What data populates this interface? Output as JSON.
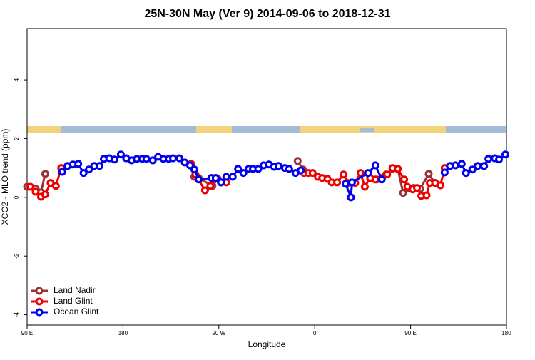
{
  "chart_data": {
    "type": "line",
    "title": "25N-30N May (Ver 9)   2014-09-06 to 2018-12-31",
    "xlabel": "Longitude",
    "ylabel": "XCO2 - MLO trend (ppm)",
    "xlim": [
      90,
      540
    ],
    "ylim": [
      -4.35,
      5.75
    ],
    "xticks": [
      {
        "value": 90,
        "label": "90 E"
      },
      {
        "value": 180,
        "label": "180"
      },
      {
        "value": 270,
        "label": "90 W"
      },
      {
        "value": 360,
        "label": "0"
      },
      {
        "value": 450,
        "label": "90 E"
      },
      {
        "value": 540,
        "label": "180"
      }
    ],
    "yticks": [
      -4,
      -2,
      0,
      2,
      4
    ],
    "legend": "bottom-left",
    "series": [
      {
        "name": "Land Nadir",
        "color": "#993333",
        "x": [
          90,
          98,
          103,
          107,
          200,
          247,
          251,
          264,
          269,
          300,
          344,
          349,
          400,
          418,
          427,
          433,
          438,
          443,
          448,
          453,
          459,
          467,
          473
        ],
        "values": [
          0.36,
          0.29,
          0.17,
          0.8,
          null,
          0.7,
          0.66,
          0.39,
          0.63,
          null,
          1.24,
          0.95,
          null,
          0.61,
          0.78,
          0.97,
          0.97,
          0.15,
          0.32,
          0.32,
          0.29,
          0.8,
          0.49
        ]
      },
      {
        "name": "Land Glint",
        "color": "#ee0000",
        "x": [
          93,
          98,
          103,
          107,
          112,
          117,
          122,
          200,
          244,
          248,
          257,
          262,
          267,
          272,
          277,
          300,
          350,
          354,
          358,
          363,
          367,
          372,
          376,
          381,
          387,
          391,
          398,
          403,
          407,
          412,
          417,
          423,
          428,
          433,
          438,
          444,
          447,
          452,
          456,
          460,
          465,
          468,
          473,
          478,
          482
        ],
        "values": [
          0.36,
          0.19,
          0.02,
          0.1,
          0.49,
          0.39,
          1.0,
          null,
          1.14,
          0.78,
          0.24,
          0.39,
          0.66,
          0.51,
          0.51,
          null,
          0.83,
          0.83,
          0.83,
          0.7,
          0.66,
          0.63,
          0.51,
          0.51,
          0.78,
          0.49,
          0.49,
          0.83,
          0.36,
          0.66,
          0.61,
          0.66,
          0.78,
          1.0,
          0.97,
          0.61,
          0.36,
          0.27,
          0.32,
          0.05,
          0.07,
          0.49,
          0.49,
          0.41,
          1.0
        ]
      },
      {
        "name": "Ocean Glint",
        "color": "#0000ee",
        "x": [
          123,
          128,
          133,
          138,
          143,
          148,
          153,
          158,
          162,
          167,
          172,
          178,
          183,
          188,
          193,
          198,
          202,
          208,
          213,
          218,
          223,
          227,
          233,
          238,
          243,
          247,
          251,
          263,
          267,
          272,
          277,
          283,
          288,
          293,
          298,
          302,
          307,
          312,
          317,
          322,
          326,
          332,
          336,
          342,
          347,
          370,
          389,
          394,
          395,
          410,
          417,
          423,
          450,
          482,
          487,
          492,
          498,
          502,
          508,
          513,
          519,
          523,
          529,
          533,
          539
        ],
        "values": [
          0.87,
          1.07,
          1.12,
          1.14,
          0.83,
          0.95,
          1.07,
          1.07,
          1.31,
          1.33,
          1.29,
          1.46,
          1.33,
          1.26,
          1.31,
          1.31,
          1.31,
          1.26,
          1.38,
          1.31,
          1.31,
          1.33,
          1.33,
          1.19,
          1.09,
          0.95,
          0.61,
          0.66,
          0.66,
          0.51,
          0.7,
          0.7,
          0.97,
          0.83,
          0.97,
          0.97,
          0.97,
          1.09,
          1.12,
          1.04,
          1.07,
          1.0,
          0.97,
          0.83,
          0.92,
          null,
          0.46,
          0.0,
          0.51,
          0.83,
          1.09,
          0.61,
          null,
          0.85,
          1.07,
          1.09,
          1.14,
          0.83,
          0.95,
          1.07,
          1.07,
          1.31,
          1.33,
          1.29,
          1.46
        ]
      }
    ]
  }
}
